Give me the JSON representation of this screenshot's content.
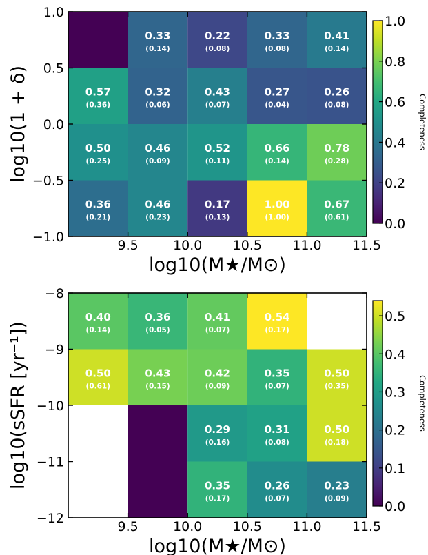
{
  "chart_data": [
    {
      "type": "heatmap",
      "xlabel": "log10(M★/M⊙)",
      "ylabel": "log10(1 + δ)",
      "x_edges": [
        9.0,
        9.5,
        10.0,
        10.5,
        11.0,
        11.5
      ],
      "y_edges": [
        -1.0,
        -0.5,
        0.0,
        0.5,
        1.0
      ],
      "xlim": [
        9.0,
        11.5
      ],
      "ylim": [
        -1.0,
        1.0
      ],
      "x_ticks": [
        "9.5",
        "10.0",
        "10.5",
        "11.0",
        "11.5"
      ],
      "y_ticks": [
        "−1.0",
        "−0.5",
        "0.0",
        "0.5",
        "1.0"
      ],
      "colorbar": {
        "label": "Completeness",
        "vmin": 0.0,
        "vmax": 1.0,
        "colormap": "viridis",
        "ticks": [
          "0.0",
          "0.2",
          "0.4",
          "0.6",
          "0.8",
          "1.0"
        ]
      },
      "rows_top_to_bottom": [
        {
          "y_range": [
            0.5,
            1.0
          ],
          "values": [
            0.0,
            0.33,
            0.22,
            0.33,
            0.41
          ],
          "errors": [
            null,
            0.14,
            0.08,
            0.08,
            0.14
          ]
        },
        {
          "y_range": [
            0.0,
            0.5
          ],
          "values": [
            0.57,
            0.32,
            0.43,
            0.27,
            0.26
          ],
          "errors": [
            0.36,
            0.06,
            0.07,
            0.04,
            0.08
          ]
        },
        {
          "y_range": [
            -0.5,
            0.0
          ],
          "values": [
            0.5,
            0.46,
            0.52,
            0.66,
            0.78
          ],
          "errors": [
            0.25,
            0.09,
            0.11,
            0.14,
            0.28
          ]
        },
        {
          "y_range": [
            -1.0,
            -0.5
          ],
          "values": [
            0.36,
            0.46,
            0.17,
            1.0,
            0.67
          ],
          "errors": [
            0.21,
            0.23,
            0.13,
            1.0,
            0.61
          ]
        }
      ],
      "labels_top_to_bottom": [
        [
          "",
          "0.33",
          "0.22",
          "0.33",
          "0.41"
        ],
        [
          "0.57",
          "0.32",
          "0.43",
          "0.27",
          "0.26"
        ],
        [
          "0.50",
          "0.46",
          "0.52",
          "0.66",
          "0.78"
        ],
        [
          "0.36",
          "0.46",
          "0.17",
          "1.00",
          "0.67"
        ]
      ],
      "sublabels_top_to_bottom": [
        [
          "",
          "(0.14)",
          "(0.08)",
          "(0.08)",
          "(0.14)"
        ],
        [
          "(0.36)",
          "(0.06)",
          "(0.07)",
          "(0.04)",
          "(0.08)"
        ],
        [
          "(0.25)",
          "(0.09)",
          "(0.11)",
          "(0.14)",
          "(0.28)"
        ],
        [
          "(0.21)",
          "(0.23)",
          "(0.13)",
          "(1.00)",
          "(0.61)"
        ]
      ]
    },
    {
      "type": "heatmap",
      "xlabel": "log10(M★/M⊙)",
      "ylabel": "log10(sSFR [yr⁻¹])",
      "x_edges": [
        9.0,
        9.5,
        10.0,
        10.5,
        11.0,
        11.5
      ],
      "y_edges": [
        -12,
        -11,
        -10,
        -9,
        -8
      ],
      "xlim": [
        9.0,
        11.5
      ],
      "ylim": [
        -12,
        -8
      ],
      "x_ticks": [
        "9.5",
        "10.0",
        "10.5",
        "11.0",
        "11.5"
      ],
      "y_ticks": [
        "−12",
        "−11",
        "−10",
        "−9",
        "−8"
      ],
      "colorbar": {
        "label": "Completeness",
        "vmin": 0.0,
        "vmax": 0.54,
        "colormap": "viridis",
        "ticks": [
          "0.0",
          "0.1",
          "0.2",
          "0.3",
          "0.4",
          "0.5"
        ]
      },
      "rows_top_to_bottom": [
        {
          "y_range": [
            -9,
            -8
          ],
          "values": [
            0.4,
            0.36,
            0.41,
            0.54,
            null
          ],
          "errors": [
            0.14,
            0.05,
            0.07,
            0.17,
            null
          ]
        },
        {
          "y_range": [
            -10,
            -9
          ],
          "values": [
            0.5,
            0.43,
            0.42,
            0.35,
            0.5
          ],
          "errors": [
            0.61,
            0.15,
            0.09,
            0.07,
            0.35
          ]
        },
        {
          "y_range": [
            -11,
            -10
          ],
          "values": [
            null,
            0.0,
            0.29,
            0.31,
            0.5
          ],
          "errors": [
            null,
            null,
            0.16,
            0.08,
            0.18
          ]
        },
        {
          "y_range": [
            -12,
            -11
          ],
          "values": [
            null,
            0.0,
            0.35,
            0.26,
            0.23
          ],
          "errors": [
            null,
            null,
            0.17,
            0.07,
            0.09
          ]
        }
      ],
      "labels_top_to_bottom": [
        [
          "0.40",
          "0.36",
          "0.41",
          "0.54",
          ""
        ],
        [
          "0.50",
          "0.43",
          "0.42",
          "0.35",
          "0.50"
        ],
        [
          "",
          "",
          "0.29",
          "0.31",
          "0.50"
        ],
        [
          "",
          "",
          "0.35",
          "0.26",
          "0.23"
        ]
      ],
      "sublabels_top_to_bottom": [
        [
          "(0.14)",
          "(0.05)",
          "(0.07)",
          "(0.17)",
          ""
        ],
        [
          "(0.61)",
          "(0.15)",
          "(0.09)",
          "(0.07)",
          "(0.35)"
        ],
        [
          "",
          "",
          "(0.16)",
          "(0.08)",
          "(0.18)"
        ],
        [
          "",
          "",
          "(0.17)",
          "(0.07)",
          "(0.09)"
        ]
      ]
    }
  ]
}
